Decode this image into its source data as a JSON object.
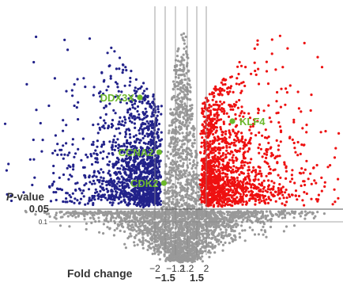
{
  "chart_data": {
    "type": "scatter",
    "title": "",
    "xlabel": "Fold change",
    "ylabel": "P-value",
    "x_ticks": [
      {
        "value": -2,
        "label": "−2",
        "major": false
      },
      {
        "value": -1.5,
        "label": "−1.5",
        "major": true
      },
      {
        "value": -1.2,
        "label": "−1.2",
        "major": false
      },
      {
        "value": 1.2,
        "label": "1.2",
        "major": false
      },
      {
        "value": 1.5,
        "label": "1.5",
        "major": true
      },
      {
        "value": 2,
        "label": "2",
        "major": false
      }
    ],
    "y_thresholds": [
      {
        "value": 0.05,
        "label": "0.05",
        "major": true
      },
      {
        "value": 0.1,
        "label": "0.1",
        "major": false
      }
    ],
    "grid": false,
    "legend": "none",
    "series": [
      {
        "group": "down-regulated",
        "color": "#22228a"
      },
      {
        "group": "up-regulated",
        "color": "#ee1111"
      },
      {
        "group": "not significant",
        "color": "#999999"
      }
    ],
    "highlighted_genes": [
      {
        "name": "DDX3X",
        "fold_change": -2.2,
        "p_value": 1e-06
      },
      {
        "name": "CCNA2",
        "fold_change": -1.9,
        "p_value": 0.0002
      },
      {
        "name": "CDK2",
        "fold_change": -1.65,
        "p_value": 0.004
      },
      {
        "name": "KLF4",
        "fold_change": 2.3,
        "p_value": 1e-05
      }
    ],
    "highlight_color": "#6cb82c"
  }
}
